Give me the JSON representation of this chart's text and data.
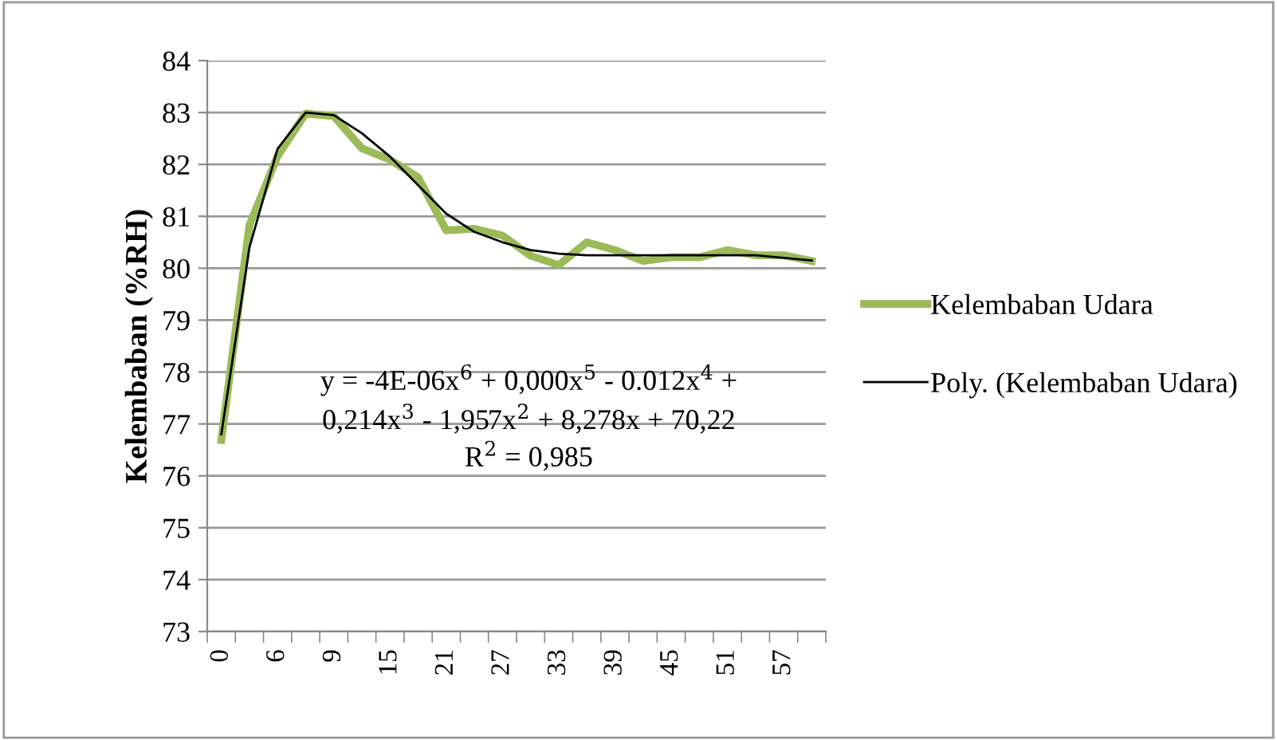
{
  "chart_data": {
    "type": "line",
    "ylabel": "Kelembaban (%RH)",
    "categories": [
      "0",
      null,
      "6",
      null,
      "9",
      null,
      "15",
      null,
      "21",
      null,
      "27",
      null,
      "33",
      null,
      "39",
      null,
      "45",
      null,
      "51",
      null,
      "57",
      null
    ],
    "series": [
      {
        "name": "Kelembaban Udara",
        "color": "#9bbb59",
        "values": [
          76.69,
          80.83,
          82.16,
          82.98,
          82.93,
          82.31,
          82.09,
          81.75,
          80.73,
          80.76,
          80.63,
          80.24,
          80.06,
          80.5,
          80.35,
          80.14,
          80.21,
          80.21,
          80.35,
          80.25,
          80.25,
          80.14
        ]
      },
      {
        "name": "Poly. (Kelembaban Udara)",
        "color": "#000000",
        "values": [
          76.8,
          80.4,
          82.3,
          83.0,
          82.95,
          82.6,
          82.15,
          81.6,
          81.05,
          80.7,
          80.5,
          80.35,
          80.28,
          80.25,
          80.25,
          80.25,
          80.25,
          80.25,
          80.25,
          80.25,
          80.2,
          80.15
        ]
      }
    ],
    "ylim": [
      73,
      84
    ],
    "yticks": [
      73,
      74,
      75,
      76,
      77,
      78,
      79,
      80,
      81,
      82,
      83,
      84
    ],
    "annotations": [
      "y = -4E-06x$^{6}$ + 0,000x$^{5}$ - 0.012x$^{4}$ +",
      "0,214x$^{3}$ - 1,957x$^{2}$ + 8,278x + 70,22",
      "R$^{2}$ = 0,985"
    ],
    "grid": "y",
    "legend": "right",
    "marker": "none",
    "line_style": "solid"
  }
}
